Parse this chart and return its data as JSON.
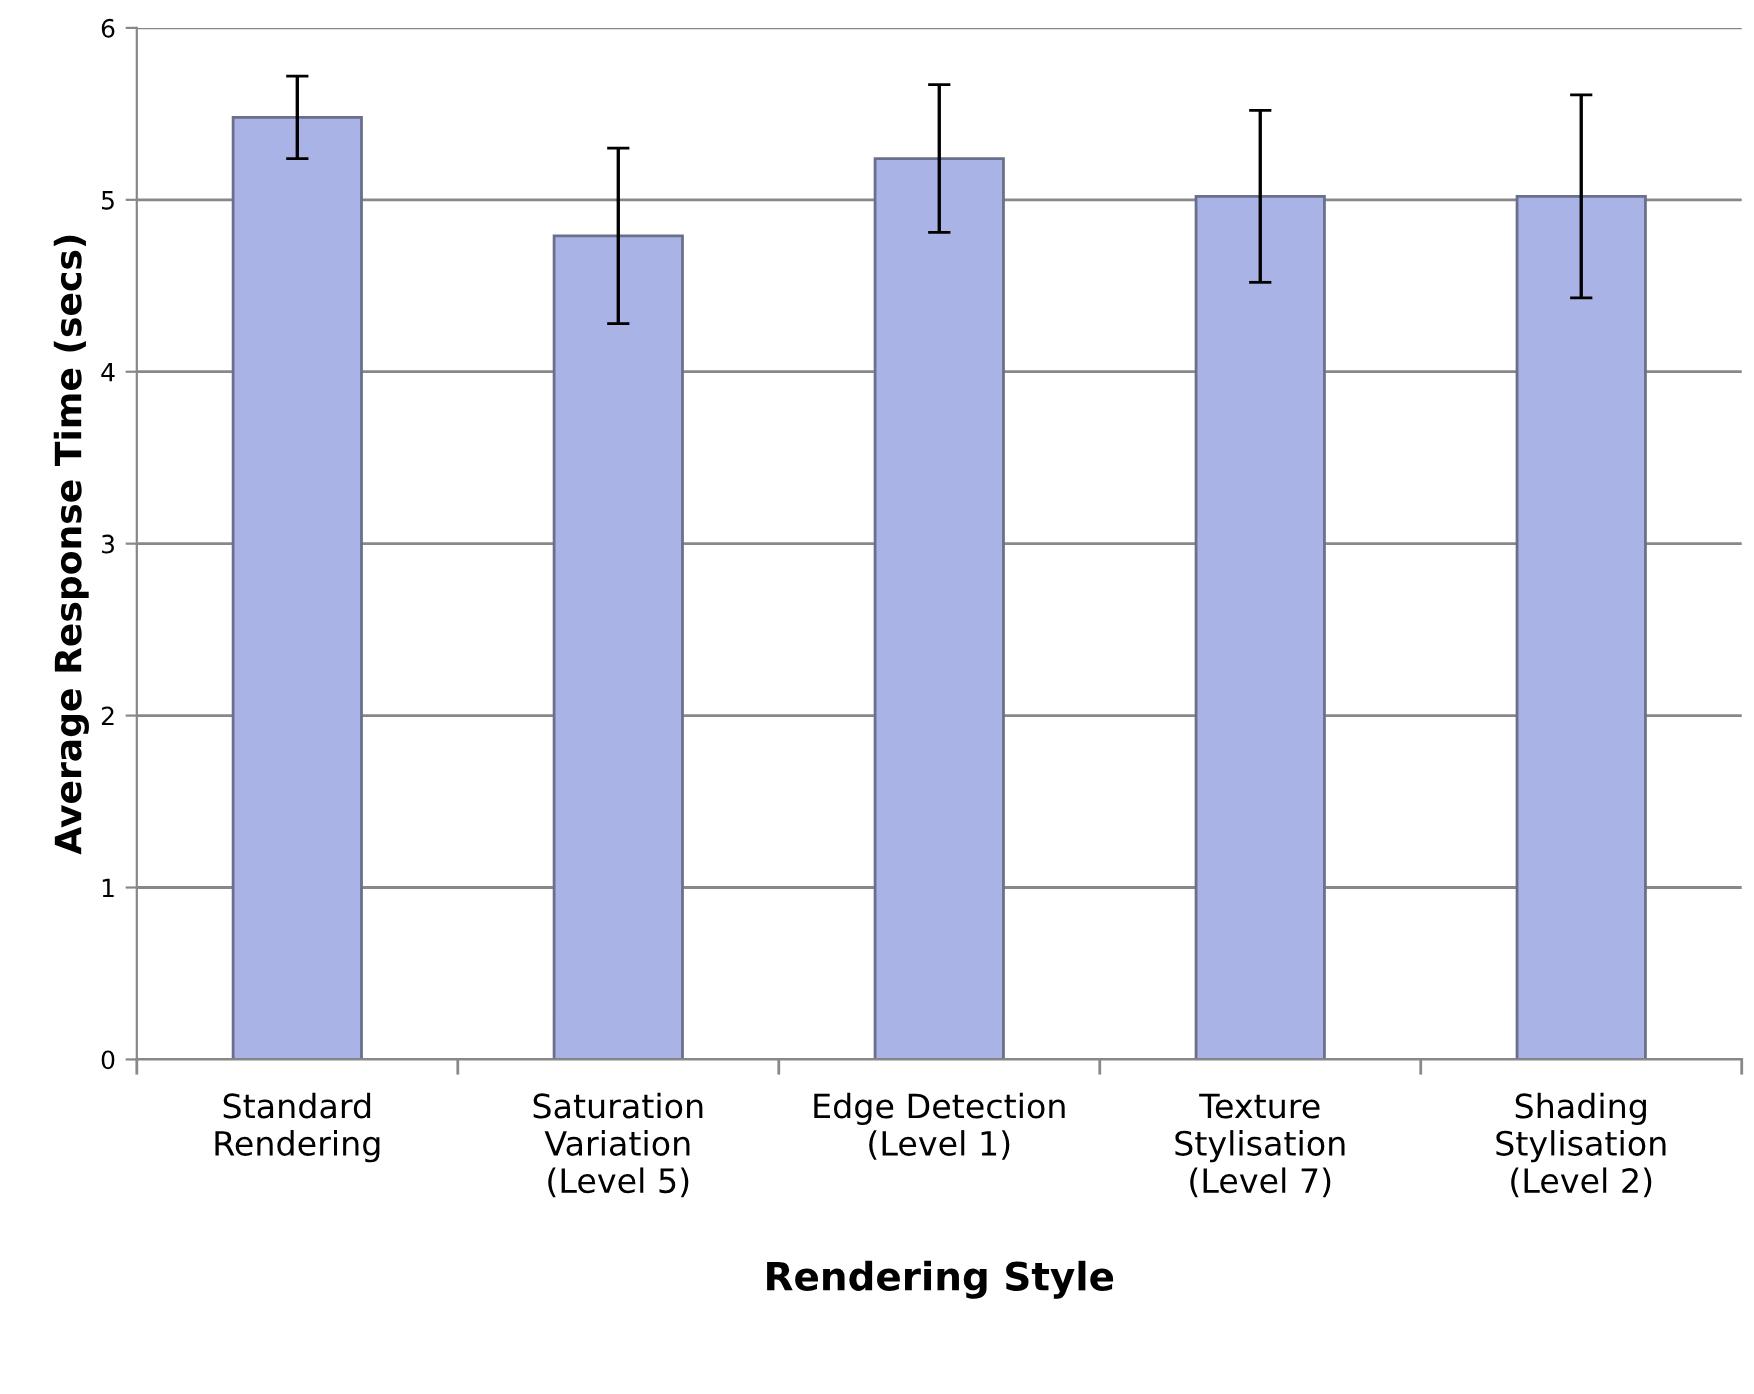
{
  "chart_data": {
    "type": "bar",
    "xlabel": "Rendering Style",
    "ylabel": "Average Response Time (secs)",
    "categories": [
      "Standard\nRendering",
      "Saturation\nVariation\n(Level 5)",
      "Edge Detection\n(Level 1)",
      "Texture\nStylisation\n(Level 7)",
      "Shading\nStylisation\n(Level 2)"
    ],
    "values": [
      5.48,
      4.79,
      5.24,
      5.02,
      5.02
    ],
    "errors": [
      0.24,
      0.51,
      0.43,
      0.5,
      0.59
    ],
    "color": "#a9b3e6",
    "ylim": [
      0,
      6
    ],
    "yticks": [
      0,
      1,
      2,
      3,
      4,
      5,
      6
    ],
    "grid": "y"
  }
}
